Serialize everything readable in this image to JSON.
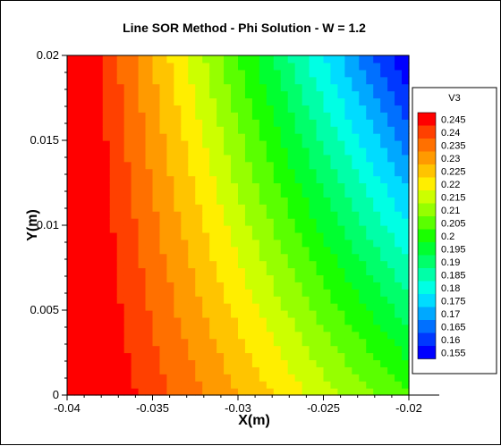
{
  "chart_data": {
    "type": "heatmap",
    "title": "Line SOR Method - Phi Solution - W = 1.2",
    "xlabel": "X(m)",
    "ylabel": "Y(m)",
    "xlim": [
      -0.04,
      -0.02
    ],
    "ylim": [
      0,
      0.02
    ],
    "x_ticks": [
      "-0.04",
      "-0.035",
      "-0.03",
      "-0.025",
      "-0.02"
    ],
    "x_tick_values": [
      -0.04,
      -0.035,
      -0.03,
      -0.025,
      -0.02
    ],
    "y_ticks": [
      "0",
      "0.005",
      "0.01",
      "0.015",
      "0.02"
    ],
    "y_tick_values": [
      0,
      0.005,
      0.01,
      0.015,
      0.02
    ],
    "legend_title": "V3",
    "legend_placement": "right",
    "legend_levels": [
      "0.245",
      "0.24",
      "0.235",
      "0.23",
      "0.225",
      "0.22",
      "0.215",
      "0.21",
      "0.205",
      "0.2",
      "0.195",
      "0.19",
      "0.185",
      "0.18",
      "0.175",
      "0.17",
      "0.165",
      "0.16",
      "0.155"
    ],
    "legend_level_values": [
      0.245,
      0.24,
      0.235,
      0.23,
      0.225,
      0.22,
      0.215,
      0.21,
      0.205,
      0.2,
      0.195,
      0.19,
      0.185,
      0.18,
      0.175,
      0.17,
      0.165,
      0.16,
      0.155
    ],
    "legend_colors": [
      "#ff0000",
      "#ff4000",
      "#ff7000",
      "#ff9a00",
      "#ffc400",
      "#ffee00",
      "#ccff00",
      "#96ff00",
      "#5aff00",
      "#1aff00",
      "#00ff30",
      "#00ff6a",
      "#00ffa8",
      "#00ffe4",
      "#00dcff",
      "#00a8ff",
      "#0070ff",
      "#0038ff",
      "#0000ff"
    ],
    "field_samples": [
      {
        "x": -0.04,
        "y": 0.0,
        "value": 0.25
      },
      {
        "x": -0.02,
        "y": 0.0,
        "value": 0.2
      },
      {
        "x": -0.04,
        "y": 0.02,
        "value": 0.25
      },
      {
        "x": -0.02,
        "y": 0.02,
        "value": 0.15
      }
    ]
  }
}
